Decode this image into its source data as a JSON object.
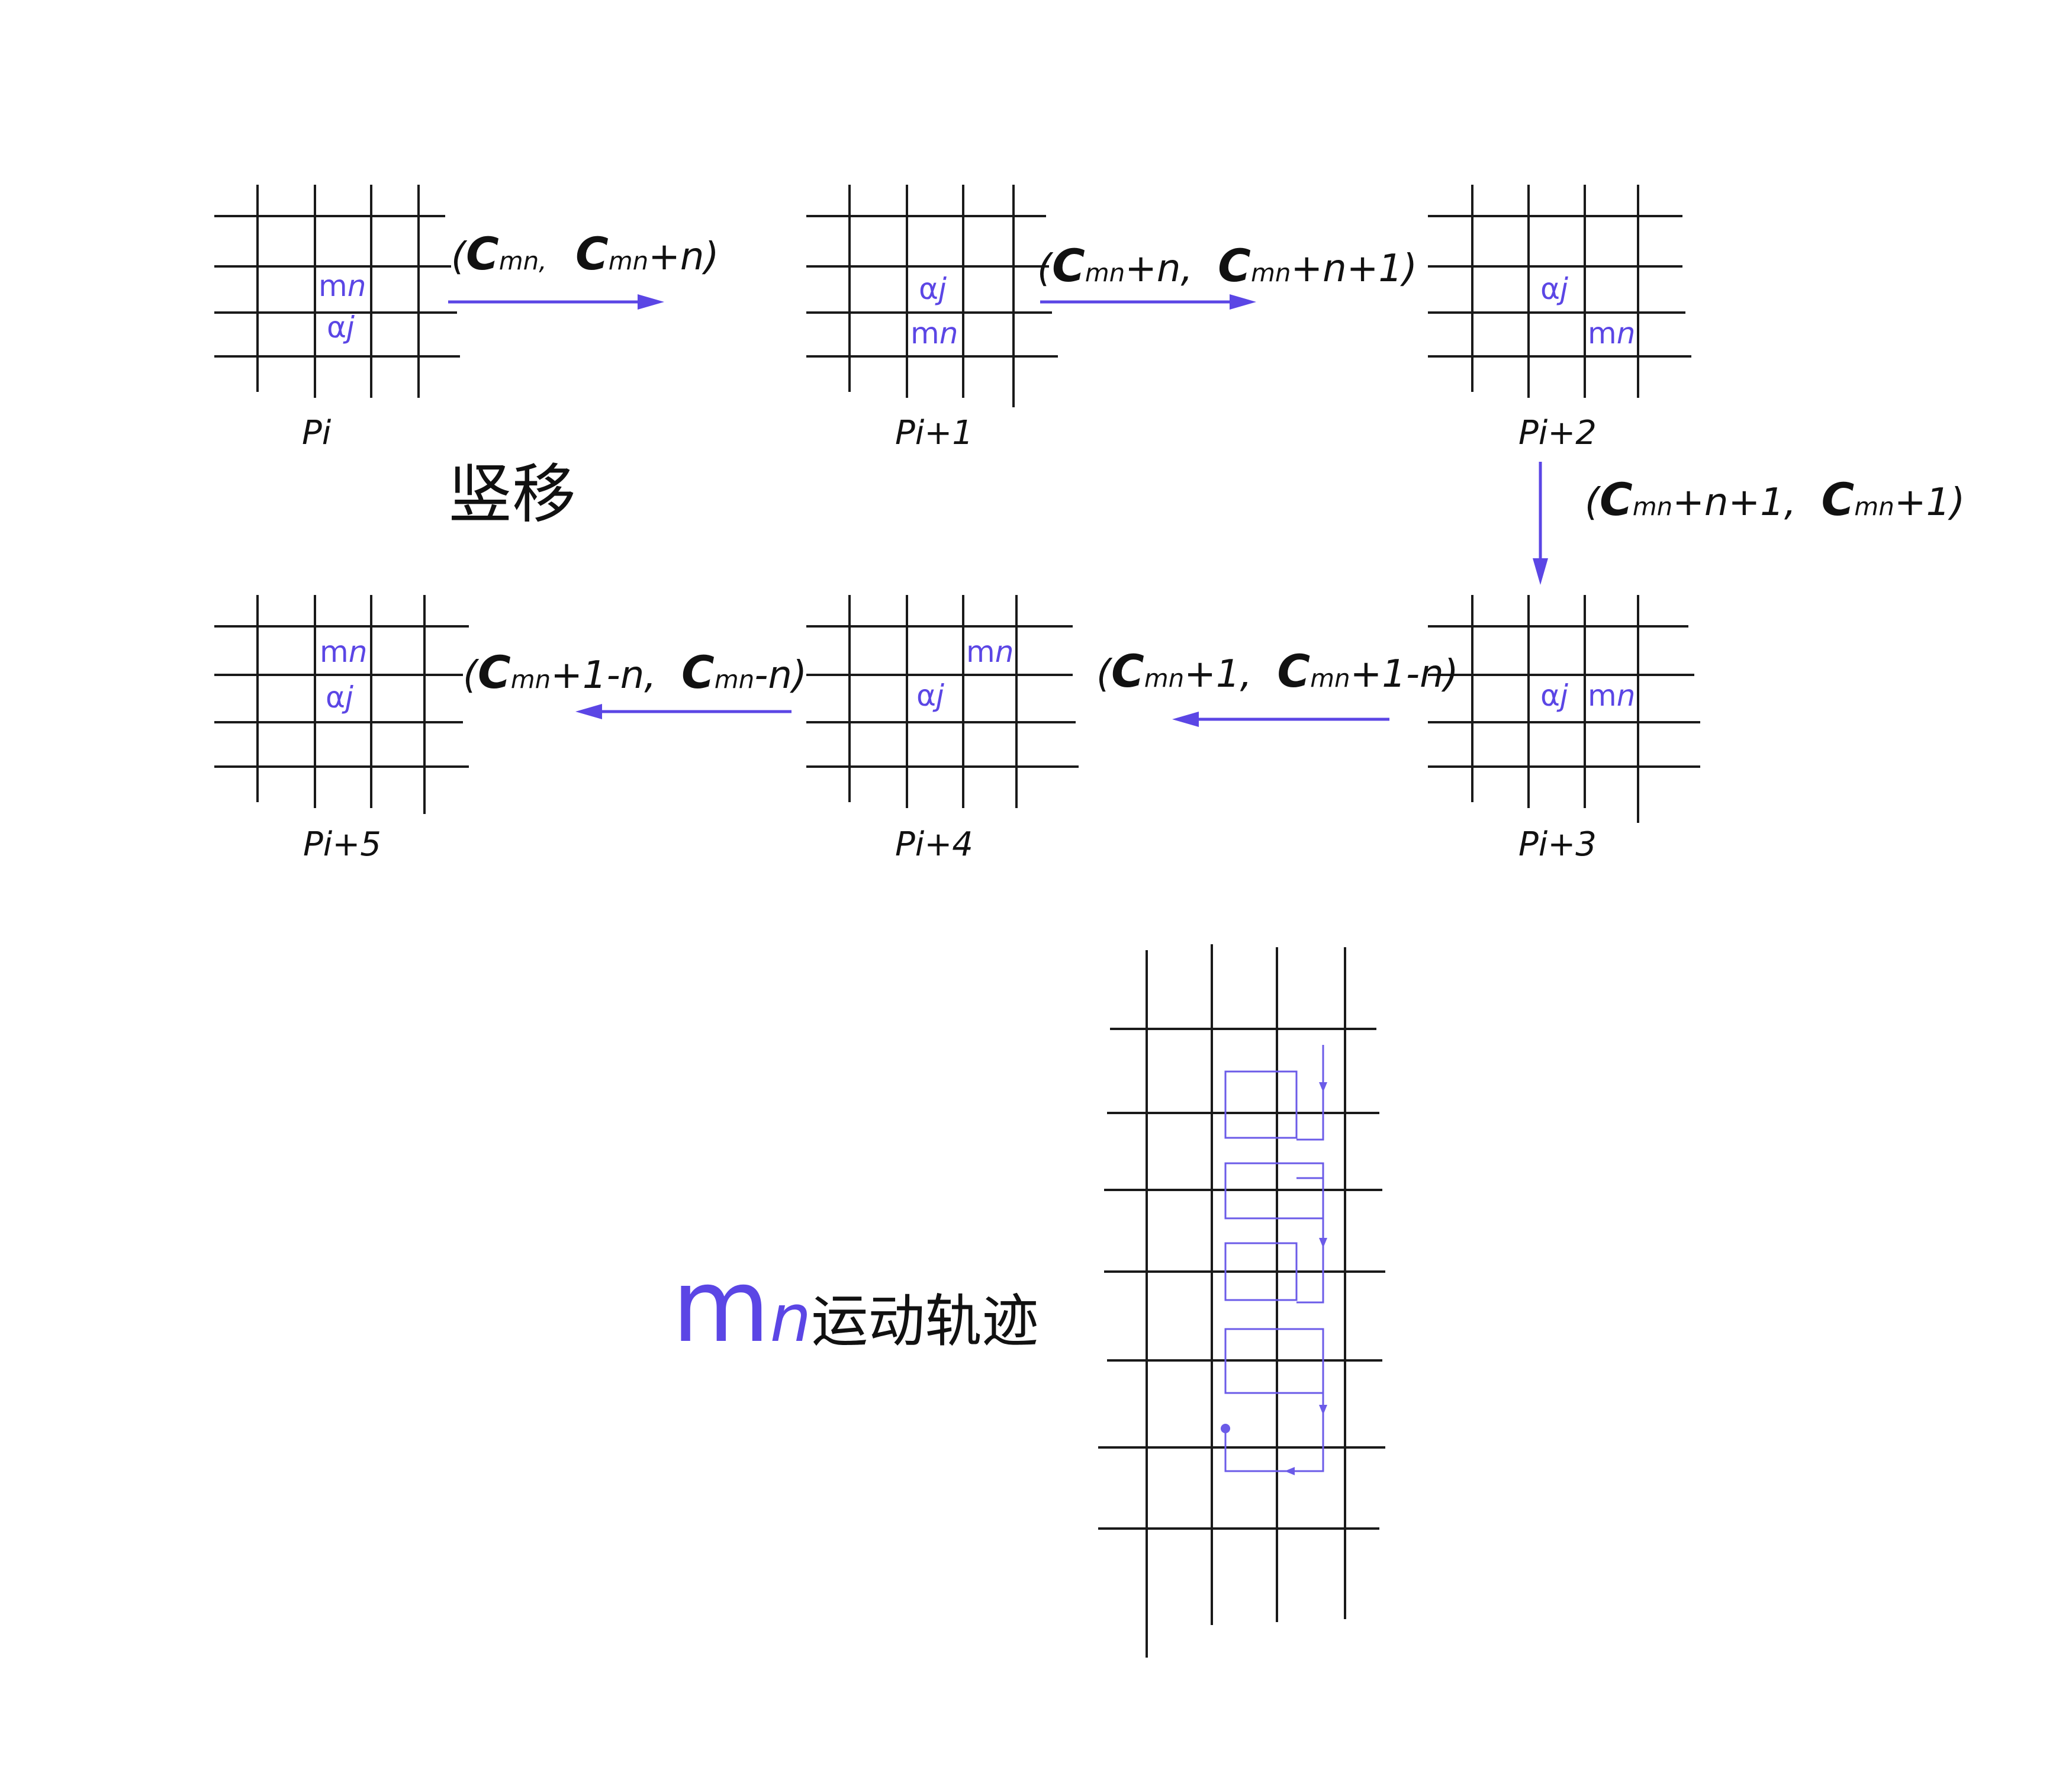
{
  "colors": {
    "accent": "#5b46e5",
    "ink": "#111111",
    "grid": "#1a1a1a"
  },
  "cells": {
    "m": "m",
    "n": "n",
    "alpha": "α",
    "j": "j"
  },
  "panels": [
    {
      "id": "p0",
      "label": "Pi"
    },
    {
      "id": "p1",
      "label": "Pi+1"
    },
    {
      "id": "p2",
      "label": "Pi+2"
    },
    {
      "id": "p3",
      "label": "Pi+3"
    },
    {
      "id": "p4",
      "label": "Pi+4"
    },
    {
      "id": "p5",
      "label": "Pi+5"
    }
  ],
  "transitions": [
    {
      "open": "(",
      "c1": "C",
      "s1": "mn",
      "r1": ",",
      "c2": "C",
      "s2": "mn",
      "r2": "+n)"
    },
    {
      "open": "(",
      "c1": "C",
      "s1": "mn",
      "r1": "+n,",
      "c2": "C",
      "s2": "mn",
      "r2": "+n+1)"
    },
    {
      "open": "(",
      "c1": "C",
      "s1": "mn",
      "r1": "+n+1,",
      "c2": "C",
      "s2": "mn",
      "r2": "+1)"
    },
    {
      "open": "(",
      "c1": "C",
      "s1": "mn",
      "r1": "+1,",
      "c2": "C",
      "s2": "mn",
      "r2": "+1-n)"
    },
    {
      "open": "(",
      "c1": "C",
      "s1": "mn",
      "r1": "+1-n,",
      "c2": "C",
      "s2": "mn",
      "r2": "-n)"
    }
  ],
  "mode_label": "竖移",
  "trajectory": {
    "m": "m",
    "n": "n",
    "caption": "运动轨迹"
  }
}
